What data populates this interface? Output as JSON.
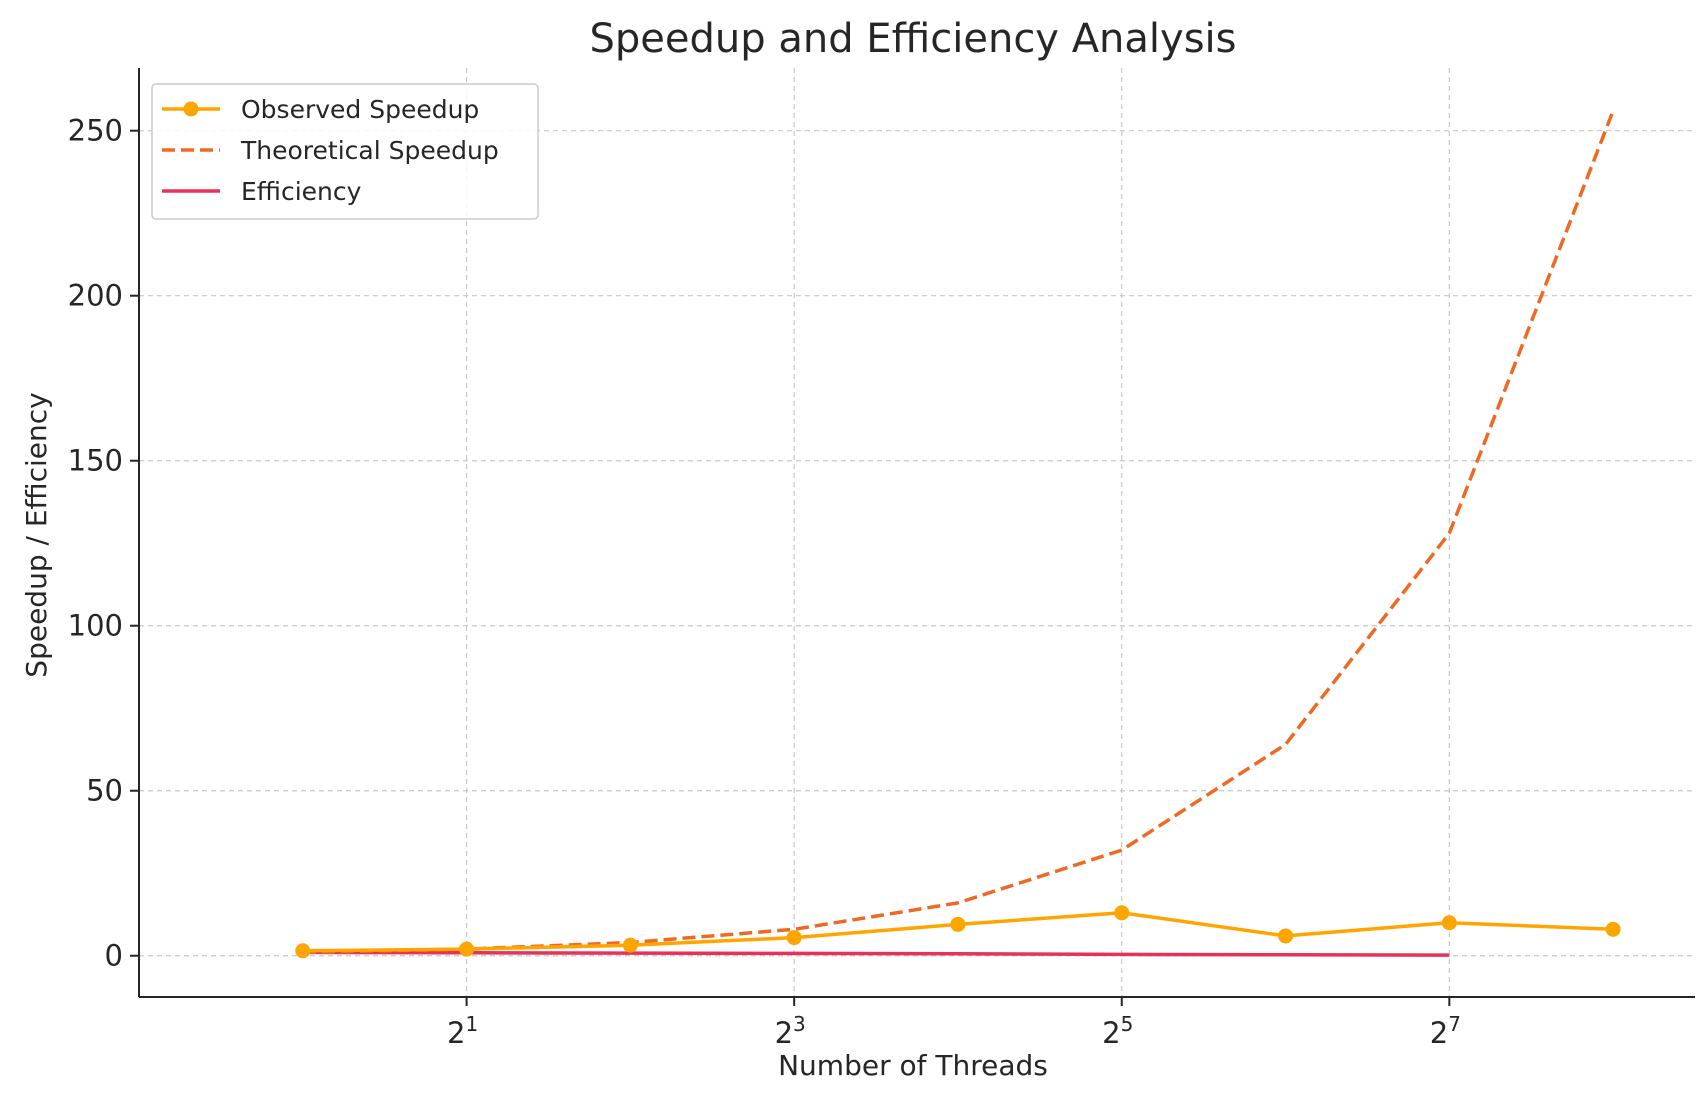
{
  "chart_data": {
    "type": "line",
    "title": "Speedup and Efficiency Analysis",
    "xlabel": "Number of Threads",
    "ylabel": "Speedup / Efficiency",
    "x_scale": "log2",
    "x": [
      1,
      2,
      4,
      8,
      16,
      32,
      64,
      128,
      256
    ],
    "x_ticks": [
      {
        "value": 2,
        "base": "2",
        "exp": "1"
      },
      {
        "value": 8,
        "base": "2",
        "exp": "3"
      },
      {
        "value": 32,
        "base": "2",
        "exp": "5"
      },
      {
        "value": 128,
        "base": "2",
        "exp": "7"
      }
    ],
    "y_ticks": [
      0,
      50,
      100,
      150,
      200,
      250
    ],
    "xlim": [
      0.5,
      362
    ],
    "ylim": [
      -12.5,
      269
    ],
    "grid": true,
    "legend_position": "top-left",
    "series": [
      {
        "name": "Observed Speedup",
        "color": "#FFA500",
        "style": "solid",
        "marker": "circle",
        "x": [
          1,
          2,
          4,
          8,
          16,
          32,
          64,
          128,
          256
        ],
        "values": [
          1.5,
          2.0,
          3.2,
          5.5,
          9.5,
          13.0,
          6.0,
          10.0,
          8.0
        ]
      },
      {
        "name": "Theoretical Speedup",
        "color": "#EE6A24",
        "style": "dashed",
        "marker": "none",
        "x": [
          1,
          2,
          4,
          8,
          16,
          32,
          64,
          128,
          256
        ],
        "values": [
          1,
          2,
          4,
          8,
          16,
          32,
          64,
          128,
          256
        ]
      },
      {
        "name": "Efficiency",
        "color": "#E8315A",
        "style": "solid",
        "marker": "none",
        "x": [
          1,
          2,
          4,
          8,
          16,
          32,
          64,
          128
        ],
        "values": [
          1.0,
          0.9,
          0.8,
          0.7,
          0.6,
          0.4,
          0.3,
          0.2
        ]
      }
    ]
  }
}
